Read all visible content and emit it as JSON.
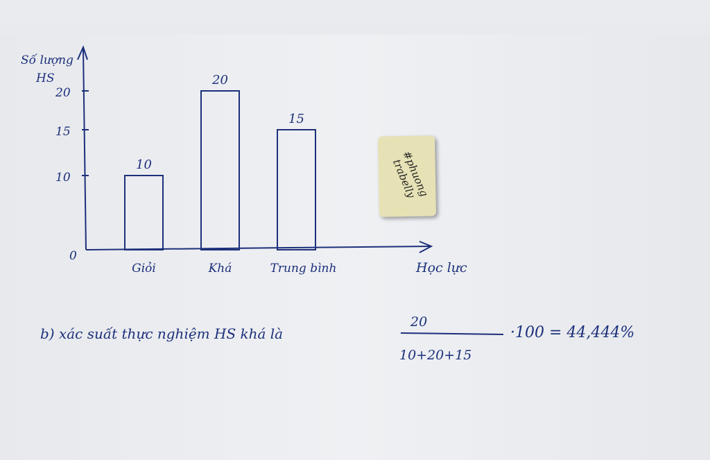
{
  "chart_data": {
    "type": "bar",
    "categories": [
      "Giỏi",
      "Khá",
      "Trung bình"
    ],
    "values": [
      10,
      20,
      15
    ],
    "data_labels": [
      "10",
      "20",
      "15"
    ],
    "ylabel_line1": "Số lượng",
    "ylabel_line2": "HS",
    "xlabel": "Học lực",
    "yticks": [
      0,
      10,
      15,
      20
    ],
    "ylim": [
      0,
      22
    ],
    "grid": false,
    "color": "#1c2f7a"
  },
  "sticker_text": "#phuong trabelly",
  "formula": {
    "prefix": "b) xác suất thực nghiệm HS khá là",
    "numerator": "20",
    "denominator": "10+20+15",
    "suffix": "·100 = 44,444%"
  }
}
